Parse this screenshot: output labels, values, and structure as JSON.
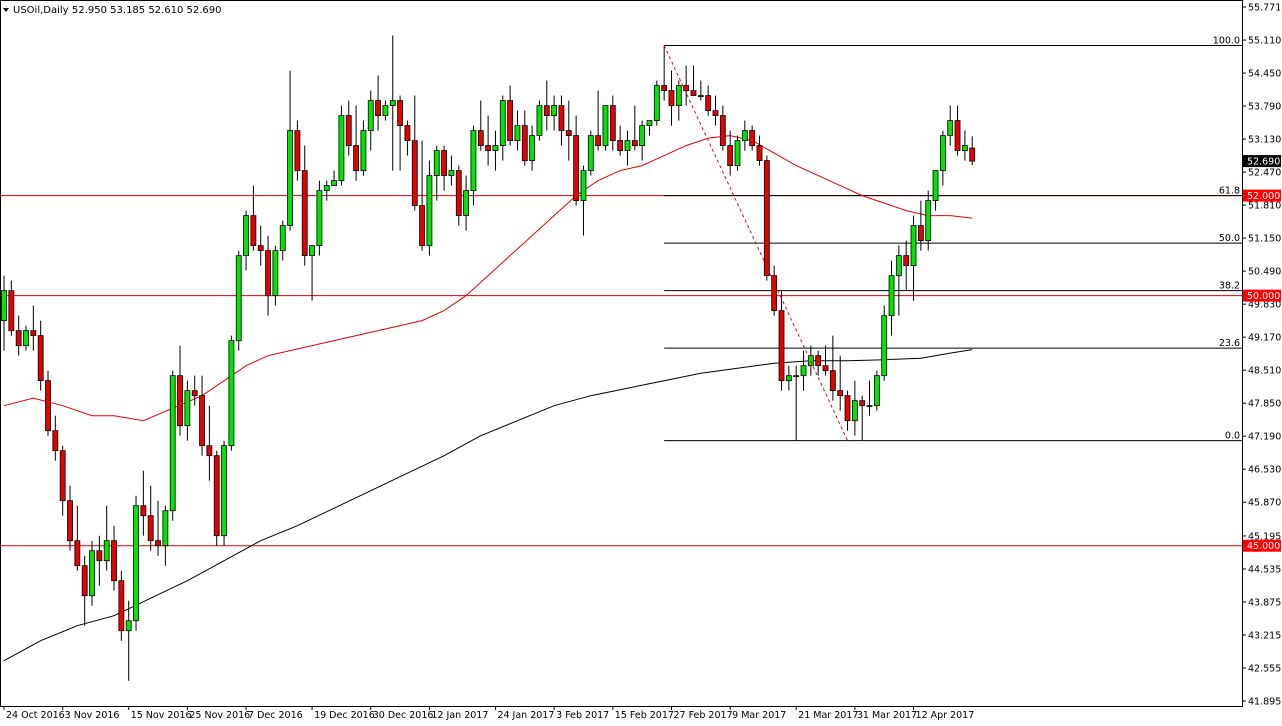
{
  "header": {
    "symbol_timeframe": "USOil,Daily",
    "ohlc": "52.950 53.185 52.610 52.690"
  },
  "chart_data": {
    "type": "candlestick",
    "title": "",
    "colors": {
      "bull_body": "#00e600",
      "bear_body": "#e60000",
      "wick": "#000000",
      "sma_fast": "#e60000",
      "sma_slow": "#000000",
      "level_line": "#e60000",
      "fib_line": "#000000",
      "price_tag_bg": "#000000",
      "level_tag_bg": "#ff0000"
    },
    "y_axis": {
      "range": [
        41.895,
        55.771
      ],
      "ticks": [
        "55.771",
        "55.110",
        "54.450",
        "53.790",
        "53.130",
        "52.470",
        "51.810",
        "51.150",
        "50.490",
        "49.830",
        "49.170",
        "48.510",
        "47.850",
        "47.190",
        "46.530",
        "45.870",
        "45.195",
        "44.535",
        "43.875",
        "43.215",
        "42.555",
        "41.895"
      ]
    },
    "x_axis": {
      "ticks": [
        "24 Oct 2016",
        "3 Nov 2016",
        "15 Nov 2016",
        "25 Nov 2016",
        "7 Dec 2016",
        "19 Dec 2016",
        "30 Dec 2016",
        "12 Jan 2017",
        "24 Jan 2017",
        "3 Feb 2017",
        "15 Feb 2017",
        "27 Feb 2017",
        "9 Mar 2017",
        "21 Mar 2017",
        "31 Mar 2017",
        "12 Apr 2017"
      ]
    },
    "current_price": "52.690",
    "horizontal_levels": [
      {
        "value": 52.0,
        "label": "52.000"
      },
      {
        "value": 50.0,
        "label": "50.000"
      },
      {
        "value": 45.0,
        "label": "45.000"
      }
    ],
    "fibonacci": {
      "high": 55.0,
      "low": 47.1,
      "levels": [
        {
          "ratio_label": "100.0",
          "value": 55.0
        },
        {
          "ratio_label": "61.8",
          "value": 52.0
        },
        {
          "ratio_label": "50.0",
          "value": 51.05
        },
        {
          "ratio_label": "38.2",
          "value": 50.1
        },
        {
          "ratio_label": "23.6",
          "value": 48.95
        },
        {
          "ratio_label": "0.0",
          "value": 47.1
        }
      ]
    },
    "candles": [
      [
        49.5,
        50.4,
        48.9,
        50.1
      ],
      [
        50.1,
        50.3,
        49.2,
        49.3
      ],
      [
        49.3,
        49.6,
        48.8,
        49.0
      ],
      [
        49.0,
        49.4,
        48.9,
        49.3
      ],
      [
        49.3,
        49.8,
        48.9,
        49.2
      ],
      [
        49.2,
        49.5,
        48.1,
        48.3
      ],
      [
        48.3,
        48.5,
        47.2,
        47.3
      ],
      [
        47.3,
        47.6,
        46.7,
        46.9
      ],
      [
        46.9,
        47.0,
        45.6,
        45.9
      ],
      [
        45.9,
        46.2,
        44.9,
        45.1
      ],
      [
        45.1,
        45.8,
        44.5,
        44.6
      ],
      [
        44.6,
        44.8,
        43.4,
        44.0
      ],
      [
        44.0,
        45.1,
        43.8,
        44.9
      ],
      [
        44.9,
        45.2,
        44.2,
        44.7
      ],
      [
        44.7,
        45.8,
        44.5,
        45.1
      ],
      [
        45.1,
        45.4,
        44.1,
        44.3
      ],
      [
        44.3,
        44.5,
        43.1,
        43.3
      ],
      [
        43.3,
        43.9,
        42.3,
        43.5
      ],
      [
        43.5,
        46.0,
        43.3,
        45.8
      ],
      [
        45.8,
        46.5,
        45.2,
        45.6
      ],
      [
        45.6,
        46.2,
        44.9,
        45.1
      ],
      [
        45.1,
        45.9,
        44.8,
        45.0
      ],
      [
        45.0,
        45.8,
        44.6,
        45.7
      ],
      [
        45.7,
        48.5,
        45.5,
        48.4
      ],
      [
        48.4,
        49.0,
        47.2,
        47.4
      ],
      [
        47.4,
        48.3,
        47.1,
        48.1
      ],
      [
        48.1,
        48.4,
        47.8,
        48.0
      ],
      [
        48.0,
        48.4,
        46.8,
        47.0
      ],
      [
        47.0,
        47.8,
        46.3,
        46.8
      ],
      [
        46.8,
        46.9,
        45.0,
        45.2
      ],
      [
        45.2,
        47.1,
        45.0,
        47.0
      ],
      [
        47.0,
        49.2,
        46.9,
        49.1
      ],
      [
        49.1,
        50.9,
        48.9,
        50.8
      ],
      [
        50.8,
        51.7,
        50.5,
        51.6
      ],
      [
        51.6,
        52.2,
        50.9,
        51.0
      ],
      [
        51.0,
        51.4,
        50.6,
        50.9
      ],
      [
        50.9,
        51.2,
        49.6,
        50.0
      ],
      [
        50.0,
        51.0,
        49.8,
        50.9
      ],
      [
        50.9,
        51.5,
        50.7,
        51.4
      ],
      [
        51.4,
        54.5,
        51.3,
        53.3
      ],
      [
        53.3,
        53.5,
        52.3,
        52.5
      ],
      [
        52.5,
        53.0,
        50.6,
        50.8
      ],
      [
        50.8,
        51.0,
        49.9,
        51.0
      ],
      [
        51.0,
        52.3,
        50.8,
        52.1
      ],
      [
        52.1,
        52.3,
        51.9,
        52.2
      ],
      [
        52.2,
        52.5,
        52.2,
        52.3
      ],
      [
        52.3,
        53.8,
        52.2,
        53.6
      ],
      [
        53.6,
        53.9,
        52.8,
        53.0
      ],
      [
        53.0,
        53.8,
        52.3,
        52.5
      ],
      [
        52.5,
        53.5,
        52.4,
        53.3
      ],
      [
        53.3,
        54.1,
        52.9,
        53.9
      ],
      [
        53.9,
        54.4,
        53.3,
        53.6
      ],
      [
        53.6,
        53.9,
        53.5,
        53.8
      ],
      [
        53.8,
        55.2,
        52.5,
        53.9
      ],
      [
        53.9,
        54.0,
        52.5,
        53.4
      ],
      [
        53.4,
        53.5,
        52.8,
        53.1
      ],
      [
        53.1,
        54.0,
        51.7,
        51.8
      ],
      [
        51.8,
        53.1,
        50.9,
        51.0
      ],
      [
        51.0,
        52.7,
        50.8,
        52.4
      ],
      [
        52.4,
        53.0,
        51.9,
        52.9
      ],
      [
        52.9,
        53.0,
        52.1,
        52.4
      ],
      [
        52.4,
        52.8,
        52.2,
        52.5
      ],
      [
        52.5,
        52.6,
        51.4,
        51.6
      ],
      [
        51.6,
        52.4,
        51.3,
        52.1
      ],
      [
        52.1,
        53.4,
        51.8,
        53.3
      ],
      [
        53.3,
        53.9,
        52.9,
        53.0
      ],
      [
        53.0,
        53.6,
        52.6,
        52.9
      ],
      [
        52.9,
        53.3,
        52.5,
        53.0
      ],
      [
        53.0,
        54.0,
        52.7,
        53.9
      ],
      [
        53.9,
        54.2,
        53.0,
        53.1
      ],
      [
        53.1,
        53.7,
        52.9,
        53.4
      ],
      [
        53.4,
        53.7,
        52.6,
        52.7
      ],
      [
        52.7,
        53.4,
        52.5,
        53.2
      ],
      [
        53.2,
        53.9,
        53.1,
        53.8
      ],
      [
        53.8,
        54.3,
        53.3,
        53.6
      ],
      [
        53.6,
        54.0,
        53.3,
        53.8
      ],
      [
        53.8,
        54.0,
        53.0,
        53.3
      ],
      [
        53.3,
        53.9,
        52.7,
        53.2
      ],
      [
        53.2,
        53.6,
        51.8,
        51.9
      ],
      [
        51.9,
        52.6,
        51.2,
        52.5
      ],
      [
        52.5,
        53.3,
        52.4,
        53.2
      ],
      [
        53.2,
        54.1,
        52.9,
        53.0
      ],
      [
        53.0,
        53.8,
        52.9,
        53.8
      ],
      [
        53.8,
        54.0,
        52.9,
        53.1
      ],
      [
        53.1,
        53.4,
        52.8,
        52.9
      ],
      [
        52.9,
        53.3,
        52.6,
        53.1
      ],
      [
        53.1,
        53.8,
        52.9,
        53.0
      ],
      [
        53.0,
        53.5,
        52.7,
        53.4
      ],
      [
        53.4,
        53.5,
        53.2,
        53.5
      ],
      [
        53.5,
        54.3,
        53.4,
        54.2
      ],
      [
        54.2,
        55.0,
        53.9,
        54.1
      ],
      [
        54.1,
        54.5,
        53.4,
        53.8
      ],
      [
        53.8,
        54.3,
        53.5,
        54.2
      ],
      [
        54.2,
        54.6,
        53.8,
        54.1
      ],
      [
        54.1,
        54.6,
        54.0,
        54.0
      ],
      [
        54.0,
        54.3,
        53.9,
        54.0
      ],
      [
        54.0,
        54.2,
        53.6,
        53.7
      ],
      [
        53.7,
        54.0,
        53.4,
        53.6
      ],
      [
        53.6,
        53.8,
        52.9,
        53.0
      ],
      [
        53.0,
        53.3,
        52.4,
        52.6
      ],
      [
        52.6,
        53.2,
        52.5,
        53.1
      ],
      [
        53.1,
        53.5,
        52.9,
        53.3
      ],
      [
        53.3,
        53.4,
        52.9,
        53.0
      ],
      [
        53.0,
        53.2,
        52.6,
        52.7
      ],
      [
        52.7,
        52.8,
        50.3,
        50.4
      ],
      [
        50.4,
        50.6,
        49.6,
        49.7
      ],
      [
        49.7,
        50.1,
        48.1,
        48.3
      ],
      [
        48.3,
        48.6,
        48.1,
        48.4
      ],
      [
        48.4,
        48.6,
        47.1,
        48.4
      ],
      [
        48.4,
        48.9,
        48.1,
        48.6
      ],
      [
        48.6,
        49.0,
        48.4,
        48.8
      ],
      [
        48.8,
        48.9,
        48.4,
        48.6
      ],
      [
        48.6,
        49.0,
        48.4,
        48.5
      ],
      [
        48.5,
        49.2,
        47.9,
        48.1
      ],
      [
        48.1,
        48.8,
        47.7,
        48.0
      ],
      [
        48.0,
        48.1,
        47.3,
        47.5
      ],
      [
        47.5,
        48.3,
        47.2,
        47.9
      ],
      [
        47.9,
        48.0,
        47.1,
        47.8
      ],
      [
        47.8,
        48.3,
        47.6,
        47.8
      ],
      [
        47.8,
        48.5,
        47.7,
        48.4
      ],
      [
        48.4,
        49.8,
        48.3,
        49.6
      ],
      [
        49.6,
        50.7,
        49.2,
        50.4
      ],
      [
        50.4,
        51.0,
        49.6,
        50.8
      ],
      [
        50.8,
        51.1,
        50.1,
        50.6
      ],
      [
        50.6,
        51.6,
        49.9,
        51.4
      ],
      [
        51.4,
        51.9,
        50.9,
        51.1
      ],
      [
        51.1,
        52.1,
        50.9,
        51.9
      ],
      [
        51.9,
        52.5,
        51.7,
        52.5
      ],
      [
        52.5,
        53.3,
        52.2,
        53.2
      ],
      [
        53.2,
        53.8,
        53.0,
        53.5
      ],
      [
        53.5,
        53.8,
        52.8,
        52.9
      ],
      [
        52.9,
        53.3,
        52.7,
        53.0
      ],
      [
        52.95,
        53.185,
        52.61,
        52.69
      ]
    ],
    "sma_fast": [
      [
        0,
        47.8
      ],
      [
        4,
        47.95
      ],
      [
        8,
        47.8
      ],
      [
        12,
        47.6
      ],
      [
        15,
        47.6
      ],
      [
        19,
        47.5
      ],
      [
        23,
        47.75
      ],
      [
        27,
        48.0
      ],
      [
        30,
        48.3
      ],
      [
        33,
        48.6
      ],
      [
        36,
        48.8
      ],
      [
        39,
        48.9
      ],
      [
        42,
        49.0
      ],
      [
        45,
        49.1
      ],
      [
        48,
        49.2
      ],
      [
        51,
        49.3
      ],
      [
        54,
        49.4
      ],
      [
        57,
        49.5
      ],
      [
        60,
        49.7
      ],
      [
        63,
        50.0
      ],
      [
        66,
        50.4
      ],
      [
        69,
        50.8
      ],
      [
        72,
        51.2
      ],
      [
        75,
        51.6
      ],
      [
        78,
        52.0
      ],
      [
        81,
        52.3
      ],
      [
        84,
        52.5
      ],
      [
        87,
        52.6
      ],
      [
        90,
        52.8
      ],
      [
        93,
        53.0
      ],
      [
        96,
        53.15
      ],
      [
        99,
        53.2
      ],
      [
        102,
        53.1
      ],
      [
        105,
        52.85
      ],
      [
        108,
        52.6
      ],
      [
        111,
        52.4
      ],
      [
        114,
        52.2
      ],
      [
        117,
        52.0
      ],
      [
        120,
        51.85
      ],
      [
        123,
        51.7
      ],
      [
        126,
        51.6
      ],
      [
        129,
        51.6
      ],
      [
        132,
        51.55
      ]
    ],
    "sma_slow": [
      [
        0,
        42.7
      ],
      [
        5,
        43.1
      ],
      [
        10,
        43.4
      ],
      [
        15,
        43.6
      ],
      [
        20,
        43.95
      ],
      [
        25,
        44.3
      ],
      [
        30,
        44.7
      ],
      [
        35,
        45.1
      ],
      [
        40,
        45.4
      ],
      [
        45,
        45.75
      ],
      [
        50,
        46.1
      ],
      [
        55,
        46.45
      ],
      [
        60,
        46.8
      ],
      [
        65,
        47.2
      ],
      [
        70,
        47.5
      ],
      [
        75,
        47.8
      ],
      [
        80,
        48.0
      ],
      [
        85,
        48.15
      ],
      [
        90,
        48.3
      ],
      [
        95,
        48.45
      ],
      [
        100,
        48.55
      ],
      [
        105,
        48.65
      ],
      [
        110,
        48.7
      ],
      [
        115,
        48.7
      ],
      [
        120,
        48.72
      ],
      [
        125,
        48.75
      ],
      [
        129,
        48.85
      ],
      [
        132,
        48.92
      ]
    ],
    "trend_line": {
      "from": [
        90,
        55.0
      ],
      "to": [
        115,
        47.1
      ]
    }
  }
}
